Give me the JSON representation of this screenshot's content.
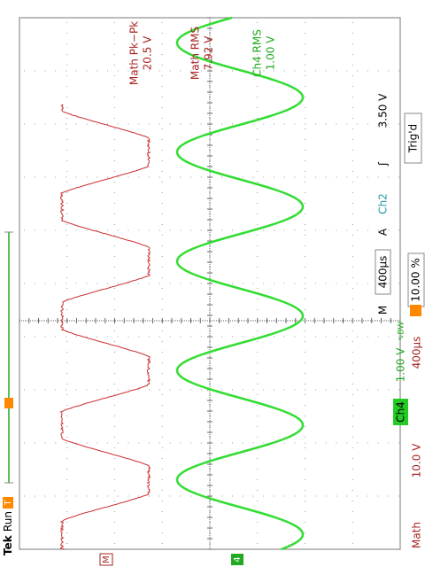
{
  "status": {
    "brand": "Tek",
    "state": "Run",
    "trigger": "Trig'd"
  },
  "measurements": [
    {
      "label": "Math Pk−Pk",
      "value": "20.5 V"
    },
    {
      "label": "Math RMS",
      "value": "7.92 V"
    },
    {
      "label": "Ch4 RMS",
      "value": "1.00 V"
    }
  ],
  "timebase": {
    "mode": "M",
    "scale": "400µs",
    "source": "A",
    "channel": "Ch2",
    "slope": "ʃ",
    "level": "3.50 V",
    "position": "10.00 %"
  },
  "channels": {
    "ch4": {
      "name": "Ch4",
      "scale": "1.00 V",
      "bw": "∿BW"
    },
    "math": {
      "name": "Math",
      "scale": "10.0 V",
      "time": "400µs"
    }
  },
  "markers": {
    "math": "M",
    "ch4": "4",
    "trigger": "T"
  }
}
